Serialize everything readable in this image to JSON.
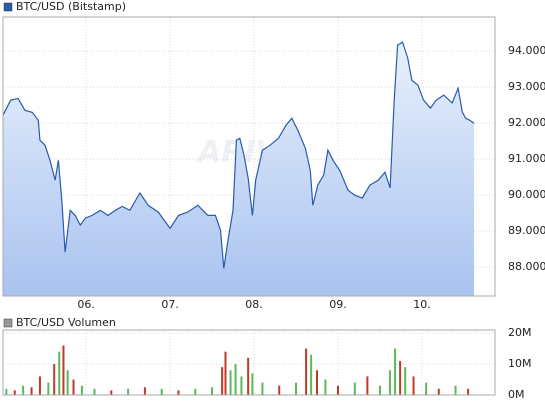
{
  "chart_data": [
    {
      "type": "line",
      "watermark": "ARIVA",
      "x": [
        5.01,
        5.1,
        5.19,
        5.27,
        5.36,
        5.43,
        5.45,
        5.51,
        5.57,
        5.63,
        5.67,
        5.71,
        5.75,
        5.81,
        5.87,
        5.93,
        5.99,
        6.07,
        6.17,
        6.26,
        6.35,
        6.43,
        6.52,
        6.64,
        6.74,
        6.86,
        7.0,
        7.1,
        7.21,
        7.33,
        7.45,
        7.54,
        7.6,
        7.64,
        7.69,
        7.75,
        7.79,
        7.83,
        7.88,
        7.93,
        7.98,
        8.02,
        8.1,
        8.19,
        8.29,
        8.38,
        8.45,
        8.52,
        8.61,
        8.67,
        8.7,
        8.76,
        8.83,
        8.88,
        8.94,
        9.02,
        9.12,
        9.2,
        9.29,
        9.38,
        9.48,
        9.56,
        9.62,
        9.67,
        9.71,
        9.77,
        9.83,
        9.88,
        9.95,
        10.02,
        10.1,
        10.17,
        10.26,
        10.36,
        10.43,
        10.48,
        10.52,
        10.57,
        10.62
      ],
      "series": [
        {
          "name": "BTC/USD (Bitstamp)",
          "color": "#2a5caa",
          "values": [
            92220,
            92640,
            92690,
            92360,
            92300,
            92080,
            91530,
            91390,
            90970,
            90420,
            90970,
            89860,
            88420,
            89580,
            89440,
            89170,
            89360,
            89440,
            89580,
            89440,
            89580,
            89690,
            89580,
            90060,
            89720,
            89530,
            89080,
            89440,
            89530,
            89720,
            89440,
            89440,
            89030,
            87970,
            88750,
            89580,
            91530,
            91580,
            91110,
            90470,
            89440,
            90420,
            91250,
            91390,
            91580,
            91940,
            92140,
            91810,
            91310,
            90690,
            89720,
            90280,
            90560,
            91250,
            90970,
            90690,
            90140,
            90000,
            89920,
            90280,
            90420,
            90640,
            90200,
            92640,
            94170,
            94250,
            93810,
            93190,
            93060,
            92640,
            92420,
            92640,
            92780,
            92560,
            92970,
            92310,
            92140,
            92080,
            92000
          ]
        }
      ],
      "xlim": [
        5.01,
        10.87
      ],
      "xticks": [
        {
          "value": 6,
          "label": "06."
        },
        {
          "value": 7,
          "label": "07."
        },
        {
          "value": 8,
          "label": "08."
        },
        {
          "value": 9,
          "label": "09."
        },
        {
          "value": 10,
          "label": "10."
        }
      ],
      "ylim": [
        87200,
        94950
      ],
      "yticks": [
        {
          "value": 88000,
          "label": "88.000"
        },
        {
          "value": 89000,
          "label": "89.000"
        },
        {
          "value": 90000,
          "label": "90.000"
        },
        {
          "value": 91000,
          "label": "91.000"
        },
        {
          "value": 92000,
          "label": "92.000"
        },
        {
          "value": 93000,
          "label": "93.000"
        },
        {
          "value": 94000,
          "label": "94.000"
        }
      ],
      "grid": true
    },
    {
      "type": "bar",
      "x": [
        5.05,
        5.15,
        5.25,
        5.35,
        5.45,
        5.55,
        5.62,
        5.68,
        5.73,
        5.78,
        5.85,
        5.95,
        6.1,
        6.3,
        6.5,
        6.7,
        6.9,
        7.1,
        7.3,
        7.5,
        7.62,
        7.66,
        7.72,
        7.78,
        7.85,
        7.93,
        7.98,
        8.1,
        8.3,
        8.5,
        8.62,
        8.68,
        8.75,
        8.85,
        9.0,
        9.2,
        9.35,
        9.5,
        9.62,
        9.68,
        9.74,
        9.8,
        9.9,
        10.05,
        10.2,
        10.4,
        10.55
      ],
      "series": [
        {
          "name": "BTC/USD Volumen",
          "color": "#999999",
          "values": [
            2000000,
            1500000,
            3000000,
            2500000,
            6000000,
            4000000,
            10000000,
            14000000,
            16000000,
            8000000,
            5000000,
            3000000,
            2000000,
            1500000,
            2000000,
            2500000,
            2000000,
            1500000,
            2000000,
            2500000,
            9000000,
            14000000,
            8000000,
            10000000,
            6000000,
            12000000,
            7000000,
            4000000,
            3000000,
            4000000,
            15000000,
            13000000,
            8000000,
            5000000,
            3000000,
            4000000,
            6000000,
            3000000,
            8000000,
            15000000,
            11000000,
            9000000,
            6000000,
            4000000,
            2000000,
            3000000,
            2000000
          ],
          "bar_colors": [
            "#5cb85c",
            "#c0392b",
            "#5cb85c",
            "#c0392b",
            "#c0392b",
            "#5cb85c",
            "#c0392b",
            "#5cb85c",
            "#c0392b",
            "#5cb85c",
            "#c0392b",
            "#5cb85c",
            "#5cb85c",
            "#c0392b",
            "#5cb85c",
            "#c0392b",
            "#5cb85c",
            "#c0392b",
            "#5cb85c",
            "#5cb85c",
            "#c0392b",
            "#c0392b",
            "#5cb85c",
            "#5cb85c",
            "#5cb85c",
            "#c0392b",
            "#5cb85c",
            "#5cb85c",
            "#c0392b",
            "#5cb85c",
            "#c0392b",
            "#5cb85c",
            "#c0392b",
            "#5cb85c",
            "#c0392b",
            "#5cb85c",
            "#c0392b",
            "#5cb85c",
            "#5cb85c",
            "#5cb85c",
            "#c0392b",
            "#5cb85c",
            "#c0392b",
            "#5cb85c",
            "#c0392b",
            "#5cb85c",
            "#c0392b"
          ]
        }
      ],
      "xlim": [
        5.01,
        10.87
      ],
      "xticks": [
        6,
        7,
        8,
        9,
        10
      ],
      "ylim": [
        0,
        21000000
      ],
      "yticks": [
        {
          "value": 0,
          "label": "0M"
        },
        {
          "value": 10000000,
          "label": "10M"
        },
        {
          "value": 20000000,
          "label": "20M"
        }
      ],
      "grid": true
    }
  ]
}
